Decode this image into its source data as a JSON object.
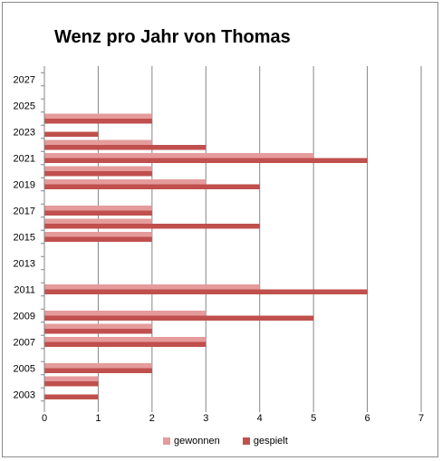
{
  "chart_data": {
    "type": "bar",
    "orientation": "horizontal",
    "title": "Wenz pro Jahr von Thomas",
    "xlabel": "",
    "ylabel": "",
    "xlim": [
      0,
      7
    ],
    "x_ticks": [
      "0",
      "1",
      "2",
      "3",
      "4",
      "5",
      "6",
      "7"
    ],
    "y_tick_labels": [
      "2003",
      "2005",
      "2007",
      "2009",
      "2011",
      "2013",
      "2015",
      "2017",
      "2019",
      "2021",
      "2023",
      "2025",
      "2027"
    ],
    "categories": [
      "2003",
      "2004",
      "2005",
      "2006",
      "2007",
      "2008",
      "2009",
      "2010",
      "2011",
      "2012",
      "2013",
      "2014",
      "2015",
      "2016",
      "2017",
      "2018",
      "2019",
      "2020",
      "2021",
      "2022",
      "2023",
      "2024",
      "2025",
      "2026",
      "2027"
    ],
    "series": [
      {
        "name": "gewonnen",
        "color": "#e59b9b",
        "values": [
          0,
          1,
          2,
          0,
          3,
          2,
          3,
          0,
          4,
          0,
          0,
          0,
          2,
          2,
          2,
          0,
          3,
          2,
          5,
          2,
          0,
          2,
          0,
          0,
          0
        ]
      },
      {
        "name": "gespielt",
        "color": "#c0504d",
        "values": [
          1,
          1,
          2,
          0,
          3,
          2,
          5,
          0,
          6,
          0,
          0,
          0,
          2,
          4,
          2,
          0,
          4,
          2,
          6,
          3,
          1,
          2,
          0,
          0,
          0
        ]
      }
    ],
    "grid": "vertical",
    "legend_position": "bottom"
  }
}
